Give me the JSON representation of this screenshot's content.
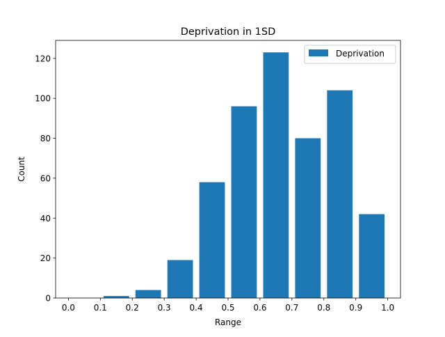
{
  "chart_data": {
    "type": "bar",
    "title": "Deprivation in 1SD",
    "xlabel": "Range",
    "ylabel": "Count",
    "series": [
      {
        "name": "Deprivation",
        "color": "#1f77b4",
        "bins": [
          {
            "range": [
              0.1,
              0.2
            ],
            "value": 1
          },
          {
            "range": [
              0.2,
              0.3
            ],
            "value": 4
          },
          {
            "range": [
              0.3,
              0.4
            ],
            "value": 19
          },
          {
            "range": [
              0.4,
              0.5
            ],
            "value": 58
          },
          {
            "range": [
              0.5,
              0.6
            ],
            "value": 96
          },
          {
            "range": [
              0.6,
              0.7
            ],
            "value": 123
          },
          {
            "range": [
              0.7,
              0.8
            ],
            "value": 80
          },
          {
            "range": [
              0.8,
              0.9
            ],
            "value": 104
          },
          {
            "range": [
              0.9,
              1.0
            ],
            "value": 42
          }
        ]
      }
    ],
    "xlim": [
      -0.04,
      1.04
    ],
    "ylim": [
      0,
      129
    ],
    "xticks": [
      "0.0",
      "0.1",
      "0.2",
      "0.3",
      "0.4",
      "0.5",
      "0.6",
      "0.7",
      "0.8",
      "0.9",
      "1.0"
    ],
    "yticks": [
      "0",
      "20",
      "40",
      "60",
      "80",
      "100",
      "120"
    ],
    "legend": {
      "position": "top-right",
      "entries": [
        "Deprivation"
      ]
    },
    "grid": false
  }
}
